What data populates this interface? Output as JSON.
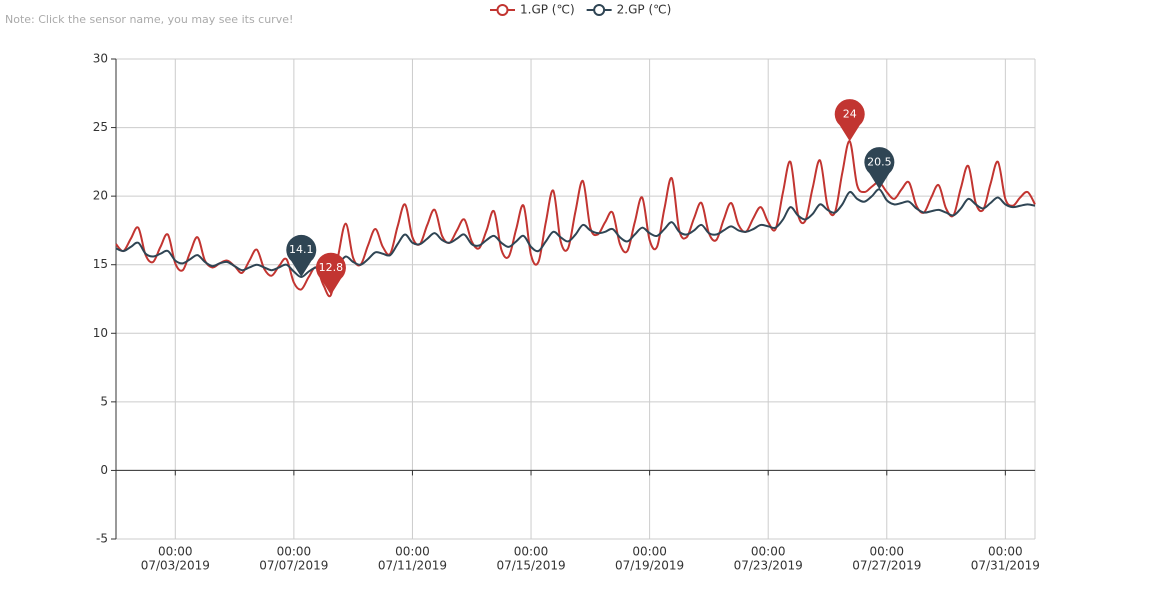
{
  "chart_data": {
    "type": "line",
    "note": "Note: Click the sensor name, you may see its curve!",
    "x": [
      "07/01/2019 00:00",
      "07/01/2019 06:00",
      "07/01/2019 12:00",
      "07/01/2019 18:00",
      "07/02/2019 00:00",
      "07/02/2019 06:00",
      "07/02/2019 12:00",
      "07/02/2019 18:00",
      "07/03/2019 00:00",
      "07/03/2019 06:00",
      "07/03/2019 12:00",
      "07/03/2019 18:00",
      "07/04/2019 00:00",
      "07/04/2019 06:00",
      "07/04/2019 12:00",
      "07/04/2019 18:00",
      "07/05/2019 00:00",
      "07/05/2019 06:00",
      "07/05/2019 12:00",
      "07/05/2019 18:00",
      "07/06/2019 00:00",
      "07/06/2019 06:00",
      "07/06/2019 12:00",
      "07/06/2019 18:00",
      "07/07/2019 00:00",
      "07/07/2019 06:00",
      "07/07/2019 12:00",
      "07/07/2019 18:00",
      "07/08/2019 00:00",
      "07/08/2019 06:00",
      "07/08/2019 12:00",
      "07/08/2019 18:00",
      "07/09/2019 00:00",
      "07/09/2019 06:00",
      "07/09/2019 12:00",
      "07/09/2019 18:00",
      "07/10/2019 00:00",
      "07/10/2019 06:00",
      "07/10/2019 12:00",
      "07/10/2019 18:00",
      "07/11/2019 00:00",
      "07/11/2019 06:00",
      "07/11/2019 12:00",
      "07/11/2019 18:00",
      "07/12/2019 00:00",
      "07/12/2019 06:00",
      "07/12/2019 12:00",
      "07/12/2019 18:00",
      "07/13/2019 00:00",
      "07/13/2019 06:00",
      "07/13/2019 12:00",
      "07/13/2019 18:00",
      "07/14/2019 00:00",
      "07/14/2019 06:00",
      "07/14/2019 12:00",
      "07/14/2019 18:00",
      "07/15/2019 00:00",
      "07/15/2019 06:00",
      "07/15/2019 12:00",
      "07/15/2019 18:00",
      "07/16/2019 00:00",
      "07/16/2019 06:00",
      "07/16/2019 12:00",
      "07/16/2019 18:00",
      "07/17/2019 00:00",
      "07/17/2019 06:00",
      "07/17/2019 12:00",
      "07/17/2019 18:00",
      "07/18/2019 00:00",
      "07/18/2019 06:00",
      "07/18/2019 12:00",
      "07/18/2019 18:00",
      "07/19/2019 00:00",
      "07/19/2019 06:00",
      "07/19/2019 12:00",
      "07/19/2019 18:00",
      "07/20/2019 00:00",
      "07/20/2019 06:00",
      "07/20/2019 12:00",
      "07/20/2019 18:00",
      "07/21/2019 00:00",
      "07/21/2019 06:00",
      "07/21/2019 12:00",
      "07/21/2019 18:00",
      "07/22/2019 00:00",
      "07/22/2019 06:00",
      "07/22/2019 12:00",
      "07/22/2019 18:00",
      "07/23/2019 00:00",
      "07/23/2019 06:00",
      "07/23/2019 12:00",
      "07/23/2019 18:00",
      "07/24/2019 00:00",
      "07/24/2019 06:00",
      "07/24/2019 12:00",
      "07/24/2019 18:00",
      "07/25/2019 00:00",
      "07/25/2019 06:00",
      "07/25/2019 12:00",
      "07/25/2019 18:00",
      "07/26/2019 00:00",
      "07/26/2019 06:00",
      "07/26/2019 12:00",
      "07/26/2019 18:00",
      "07/27/2019 00:00",
      "07/27/2019 06:00",
      "07/27/2019 12:00",
      "07/27/2019 18:00",
      "07/28/2019 00:00",
      "07/28/2019 06:00",
      "07/28/2019 12:00",
      "07/28/2019 18:00",
      "07/29/2019 00:00",
      "07/29/2019 06:00",
      "07/29/2019 12:00",
      "07/29/2019 18:00",
      "07/30/2019 00:00",
      "07/30/2019 06:00",
      "07/30/2019 12:00",
      "07/30/2019 18:00",
      "07/31/2019 00:00",
      "07/31/2019 06:00",
      "07/31/2019 12:00",
      "07/31/2019 18:00",
      "08/01/2019 00:00"
    ],
    "series": [
      {
        "name": "1.GP (℃)",
        "color": "#c23531",
        "values": [
          16.5,
          16.0,
          16.9,
          17.7,
          15.7,
          15.2,
          16.3,
          17.2,
          15.1,
          14.6,
          15.9,
          17.0,
          15.3,
          14.8,
          15.1,
          15.3,
          14.9,
          14.4,
          15.3,
          16.1,
          14.7,
          14.2,
          14.9,
          15.4,
          13.7,
          13.2,
          14.1,
          14.8,
          13.5,
          12.8,
          15.7,
          18.0,
          15.5,
          15.0,
          16.4,
          17.6,
          16.3,
          15.8,
          17.8,
          19.4,
          17.0,
          16.5,
          17.9,
          19.0,
          17.1,
          16.6,
          17.5,
          18.3,
          16.7,
          16.2,
          17.5,
          18.9,
          16.1,
          15.6,
          17.6,
          19.3,
          15.7,
          15.2,
          18.1,
          20.4,
          16.7,
          16.2,
          18.9,
          21.1,
          17.7,
          17.2,
          18.1,
          18.8,
          16.5,
          16.0,
          18.1,
          19.9,
          16.8,
          16.3,
          19.1,
          21.3,
          17.5,
          17.0,
          18.4,
          19.5,
          17.3,
          16.8,
          18.3,
          19.5,
          17.9,
          17.4,
          18.4,
          19.2,
          18.1,
          17.6,
          20.3,
          22.5,
          18.7,
          18.2,
          20.6,
          22.6,
          19.3,
          18.8,
          21.7,
          24,
          20.8,
          20.3,
          20.7,
          21.0,
          20.3,
          19.8,
          20.5,
          21.0,
          19.3,
          18.8,
          19.9,
          20.8,
          19.1,
          18.6,
          20.6,
          22.2,
          19.5,
          19.0,
          20.9,
          22.5,
          19.8,
          19.3,
          19.9,
          20.3,
          19.4
        ]
      },
      {
        "name": "2.GP (℃)",
        "color": "#2f4554",
        "values": [
          16.2,
          16.0,
          16.3,
          16.6,
          15.8,
          15.6,
          15.8,
          16.0,
          15.3,
          15.1,
          15.4,
          15.7,
          15.2,
          14.9,
          15.1,
          15.2,
          14.9,
          14.6,
          14.8,
          15.0,
          14.8,
          14.6,
          14.8,
          15.0,
          14.5,
          14.1,
          14.5,
          14.8,
          14.6,
          14.4,
          15.0,
          15.6,
          15.2,
          15.0,
          15.4,
          15.9,
          15.8,
          15.7,
          16.5,
          17.2,
          16.6,
          16.5,
          16.9,
          17.3,
          16.8,
          16.6,
          16.9,
          17.2,
          16.5,
          16.4,
          16.8,
          17.1,
          16.6,
          16.3,
          16.7,
          17.1,
          16.3,
          16.0,
          16.7,
          17.4,
          17.0,
          16.7,
          17.2,
          17.9,
          17.5,
          17.3,
          17.4,
          17.6,
          17.0,
          16.7,
          17.2,
          17.7,
          17.3,
          17.1,
          17.6,
          18.1,
          17.4,
          17.2,
          17.5,
          17.9,
          17.3,
          17.2,
          17.5,
          17.8,
          17.5,
          17.4,
          17.6,
          17.9,
          17.8,
          17.7,
          18.3,
          19.2,
          18.6,
          18.3,
          18.7,
          19.4,
          19.0,
          18.8,
          19.4,
          20.3,
          19.8,
          19.6,
          20.0,
          20.5,
          19.7,
          19.4,
          19.5,
          19.6,
          19.1,
          18.8,
          18.9,
          19.0,
          18.8,
          18.6,
          19.1,
          19.8,
          19.4,
          19.1,
          19.5,
          19.9,
          19.4,
          19.2,
          19.3,
          19.4,
          19.3
        ]
      }
    ],
    "mark_points": [
      "max",
      "min"
    ],
    "xlim": [
      "07/01/2019 00:00",
      "08/01/2019 00:00"
    ],
    "xticks": [
      {
        "value": "07/03/2019 00:00",
        "label": [
          "00:00",
          "07/03/2019"
        ]
      },
      {
        "value": "07/07/2019 00:00",
        "label": [
          "00:00",
          "07/07/2019"
        ]
      },
      {
        "value": "07/11/2019 00:00",
        "label": [
          "00:00",
          "07/11/2019"
        ]
      },
      {
        "value": "07/15/2019 00:00",
        "label": [
          "00:00",
          "07/15/2019"
        ]
      },
      {
        "value": "07/19/2019 00:00",
        "label": [
          "00:00",
          "07/19/2019"
        ]
      },
      {
        "value": "07/23/2019 00:00",
        "label": [
          "00:00",
          "07/23/2019"
        ]
      },
      {
        "value": "07/27/2019 00:00",
        "label": [
          "00:00",
          "07/27/2019"
        ]
      },
      {
        "value": "07/31/2019 00:00",
        "label": [
          "00:00",
          "07/31/2019"
        ]
      }
    ],
    "ylim": [
      -5,
      30
    ],
    "yticks": [
      -5,
      0,
      5,
      10,
      15,
      20,
      25,
      30
    ],
    "grid": true,
    "legend": "top"
  }
}
